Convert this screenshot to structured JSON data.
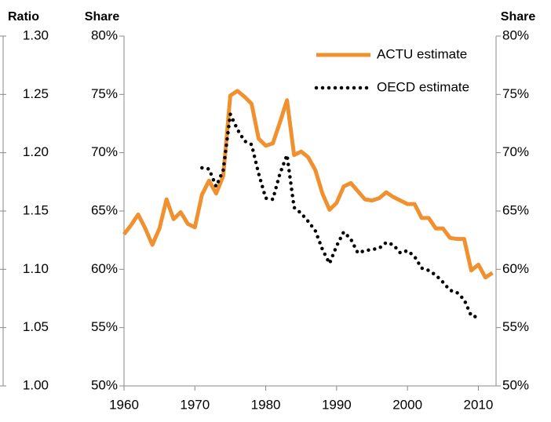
{
  "chart_data": {
    "type": "line",
    "ratio_axis_title": "Ratio",
    "y_axis_title": "Share",
    "y2_axis_title": "Share",
    "ratio_ylim": [
      1.0,
      1.3
    ],
    "ratio_yticks": [
      {
        "value": 1.3,
        "label": "1.30"
      },
      {
        "value": 1.25,
        "label": "1.25"
      },
      {
        "value": 1.2,
        "label": "1.20"
      },
      {
        "value": 1.15,
        "label": "1.15"
      },
      {
        "value": 1.1,
        "label": "1.10"
      },
      {
        "value": 1.05,
        "label": "1.05"
      },
      {
        "value": 1.0,
        "label": "1.00"
      }
    ],
    "ylim": [
      50,
      80
    ],
    "yticks": [
      {
        "value": 80,
        "label": "80%"
      },
      {
        "value": 75,
        "label": "75%"
      },
      {
        "value": 70,
        "label": "70%"
      },
      {
        "value": 65,
        "label": "65%"
      },
      {
        "value": 60,
        "label": "60%"
      },
      {
        "value": 55,
        "label": "55%"
      },
      {
        "value": 50,
        "label": "50%"
      }
    ],
    "y2lim": [
      50,
      80
    ],
    "y2ticks": [
      {
        "value": 80,
        "label": "80%"
      },
      {
        "value": 75,
        "label": "75%"
      },
      {
        "value": 70,
        "label": "70%"
      },
      {
        "value": 65,
        "label": "65%"
      },
      {
        "value": 60,
        "label": "60%"
      },
      {
        "value": 55,
        "label": "55%"
      },
      {
        "value": 50,
        "label": "50%"
      }
    ],
    "xlim": [
      1960,
      2012.5
    ],
    "xticks": [
      1960,
      1970,
      1980,
      1990,
      2000,
      2010
    ],
    "x": [
      1960,
      1961,
      1962,
      1963,
      1964,
      1965,
      1966,
      1967,
      1968,
      1969,
      1970,
      1971,
      1972,
      1973,
      1974,
      1975,
      1976,
      1977,
      1978,
      1979,
      1980,
      1981,
      1982,
      1983,
      1984,
      1985,
      1986,
      1987,
      1988,
      1989,
      1990,
      1991,
      1992,
      1993,
      1994,
      1995,
      1996,
      1997,
      1998,
      1999,
      2000,
      2001,
      2002,
      2003,
      2004,
      2005,
      2006,
      2007,
      2008,
      2009,
      2010,
      2011,
      2012
    ],
    "series": [
      {
        "name": "ACTU estimate",
        "color": "#f0902f",
        "dash": false,
        "values": [
          63.0,
          63.8,
          64.7,
          63.5,
          62.1,
          63.5,
          66.0,
          64.3,
          64.9,
          63.9,
          63.6,
          66.4,
          67.6,
          66.5,
          68.0,
          74.9,
          75.3,
          74.8,
          74.2,
          71.2,
          70.6,
          70.8,
          72.6,
          74.5,
          69.8,
          70.1,
          69.6,
          68.5,
          66.5,
          65.1,
          65.7,
          67.1,
          67.4,
          66.7,
          66.0,
          65.9,
          66.1,
          66.6,
          66.2,
          65.9,
          65.6,
          65.6,
          64.4,
          64.4,
          63.5,
          63.5,
          62.7,
          62.6,
          62.6,
          59.9,
          60.4,
          59.3,
          59.7
        ]
      },
      {
        "name": "OECD estimate",
        "color": "#000000",
        "dash": true,
        "values": [
          null,
          null,
          null,
          null,
          null,
          null,
          null,
          null,
          null,
          null,
          null,
          68.7,
          68.6,
          67.1,
          68.5,
          73.3,
          72.0,
          71.0,
          70.7,
          68.2,
          66.1,
          66.0,
          68.2,
          69.8,
          65.3,
          64.8,
          64.1,
          63.3,
          61.7,
          60.5,
          62.0,
          63.2,
          62.6,
          61.4,
          61.6,
          61.7,
          61.8,
          62.3,
          62.1,
          61.4,
          61.6,
          61.1,
          60.1,
          59.9,
          59.5,
          58.9,
          58.2,
          58.0,
          57.4,
          56.0,
          55.9,
          null,
          null
        ]
      }
    ]
  }
}
